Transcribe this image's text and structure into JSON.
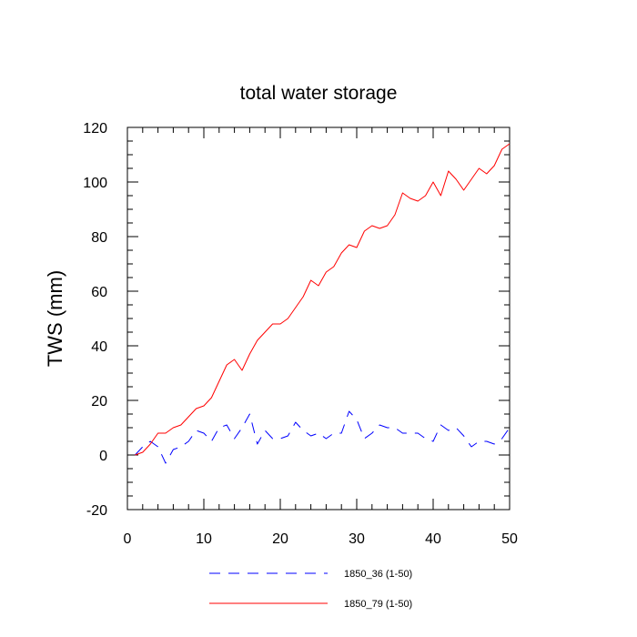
{
  "chart_data": {
    "type": "line",
    "title": "total water storage",
    "xlabel": "",
    "ylabel": "TWS  (mm)",
    "xlim": [
      0,
      50
    ],
    "ylim": [
      -20,
      120
    ],
    "x_ticks": [
      0,
      10,
      20,
      30,
      40,
      50
    ],
    "y_ticks": [
      -20,
      0,
      20,
      40,
      60,
      80,
      100,
      120
    ],
    "x_tick_labels": [
      "0",
      "10",
      "20",
      "30",
      "40",
      "50"
    ],
    "y_tick_labels": [
      "-20",
      "0",
      "20",
      "40",
      "60",
      "80",
      "100",
      "120"
    ],
    "grid": false,
    "legend_placement": "bottom",
    "series": [
      {
        "name": "1850_36 (1-50)",
        "color": "#0000ff",
        "style": "dashed",
        "x": [
          1,
          2,
          3,
          4,
          5,
          6,
          7,
          8,
          9,
          10,
          11,
          12,
          13,
          14,
          15,
          16,
          17,
          18,
          19,
          20,
          21,
          22,
          23,
          24,
          25,
          26,
          27,
          28,
          29,
          30,
          31,
          32,
          33,
          34,
          35,
          36,
          37,
          38,
          39,
          40,
          41,
          42,
          43,
          44,
          45,
          46,
          47,
          48,
          49,
          50
        ],
        "values": [
          0,
          3,
          5,
          3,
          -3,
          2,
          3,
          5,
          9,
          8,
          5,
          10,
          11,
          6,
          10,
          15,
          4,
          9,
          6,
          6,
          7,
          12,
          9,
          7,
          8,
          6,
          8,
          8,
          16,
          13,
          6,
          8,
          11,
          10,
          10,
          8,
          8,
          8,
          6,
          5,
          11,
          9,
          10,
          7,
          3,
          5,
          5,
          4,
          6,
          10
        ]
      },
      {
        "name": "1850_79 (1-50)",
        "color": "#ff0000",
        "style": "solid",
        "x": [
          1,
          2,
          3,
          4,
          5,
          6,
          7,
          8,
          9,
          10,
          11,
          12,
          13,
          14,
          15,
          16,
          17,
          18,
          19,
          20,
          21,
          22,
          23,
          24,
          25,
          26,
          27,
          28,
          29,
          30,
          31,
          32,
          33,
          34,
          35,
          36,
          37,
          38,
          39,
          40,
          41,
          42,
          43,
          44,
          45,
          46,
          47,
          48,
          49,
          50
        ],
        "values": [
          0,
          1,
          4,
          8,
          8,
          10,
          11,
          14,
          17,
          18,
          21,
          27,
          33,
          35,
          31,
          37,
          42,
          45,
          48,
          48,
          50,
          54,
          58,
          64,
          62,
          67,
          69,
          74,
          77,
          76,
          82,
          84,
          83,
          84,
          88,
          96,
          94,
          93,
          95,
          100,
          95,
          104,
          101,
          97,
          101,
          105,
          103,
          106,
          112,
          114
        ]
      }
    ]
  }
}
